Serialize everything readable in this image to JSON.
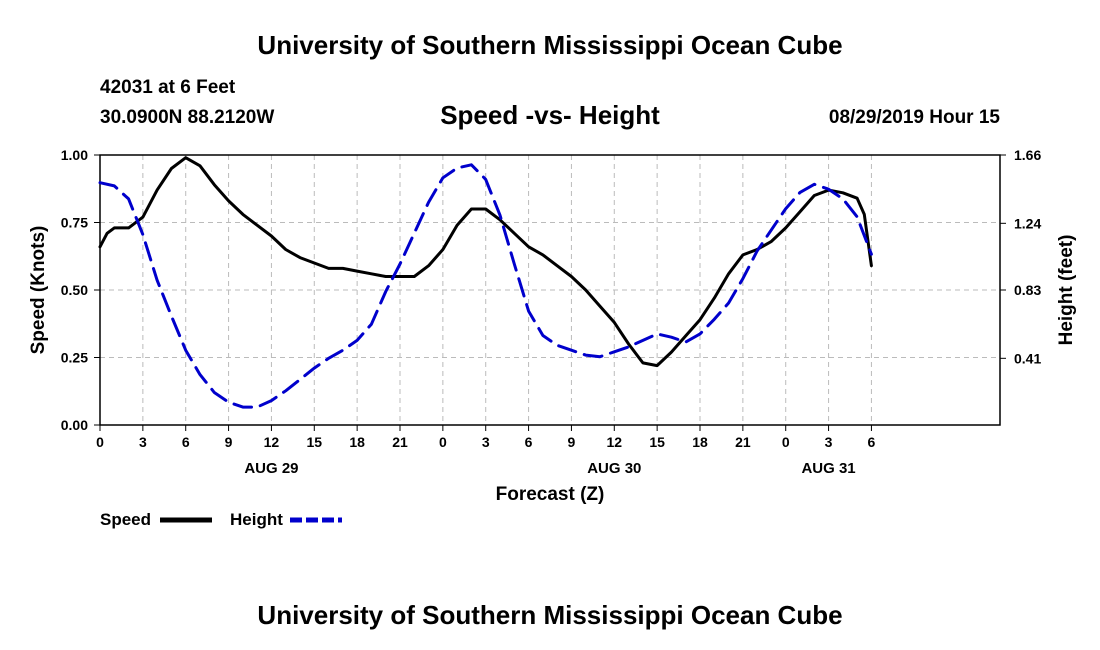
{
  "page": {
    "title_top": "University of Southern Mississippi Ocean Cube",
    "title_bottom": "University of Southern Mississippi Ocean Cube",
    "station": "42031 at 6 Feet",
    "coords": "30.0900N 88.2120W",
    "datetime": "08/29/2019 Hour 15"
  },
  "legend": {
    "speed_label": "Speed",
    "height_label": "Height"
  },
  "colors": {
    "speed": "#000000",
    "height": "#0000cc",
    "grid": "#bbbbbb"
  },
  "chart_data": {
    "type": "line",
    "title": "Speed -vs- Height",
    "xlabel": "Forecast (Z)",
    "ylabel": "Speed (Knots)",
    "y2label": "Height (feet)",
    "xlim": [
      0,
      63
    ],
    "ylim": [
      0,
      1.0
    ],
    "y2lim": [
      0,
      1.66
    ],
    "x_ticks": [
      {
        "x": 0,
        "label": "0"
      },
      {
        "x": 3,
        "label": "3"
      },
      {
        "x": 6,
        "label": "6"
      },
      {
        "x": 9,
        "label": "9"
      },
      {
        "x": 12,
        "label": "12"
      },
      {
        "x": 15,
        "label": "15"
      },
      {
        "x": 18,
        "label": "18"
      },
      {
        "x": 21,
        "label": "21"
      },
      {
        "x": 24,
        "label": "0"
      },
      {
        "x": 27,
        "label": "3"
      },
      {
        "x": 30,
        "label": "6"
      },
      {
        "x": 33,
        "label": "9"
      },
      {
        "x": 36,
        "label": "12"
      },
      {
        "x": 39,
        "label": "15"
      },
      {
        "x": 42,
        "label": "18"
      },
      {
        "x": 45,
        "label": "21"
      },
      {
        "x": 48,
        "label": "0"
      },
      {
        "x": 51,
        "label": "3"
      },
      {
        "x": 54,
        "label": "6"
      }
    ],
    "date_labels": [
      {
        "x": 12,
        "label": "AUG 29"
      },
      {
        "x": 36,
        "label": "AUG 30"
      },
      {
        "x": 51,
        "label": "AUG 31"
      }
    ],
    "y_ticks": [
      {
        "v": 0.0,
        "label": "0.00"
      },
      {
        "v": 0.25,
        "label": "0.25"
      },
      {
        "v": 0.5,
        "label": "0.50"
      },
      {
        "v": 0.75,
        "label": "0.75"
      },
      {
        "v": 1.0,
        "label": "1.00"
      }
    ],
    "y2_ticks": [
      {
        "v": 0.41,
        "label": "0.41"
      },
      {
        "v": 0.83,
        "label": "0.83"
      },
      {
        "v": 1.24,
        "label": "1.24"
      },
      {
        "v": 1.66,
        "label": "1.66"
      }
    ],
    "series": [
      {
        "name": "Speed",
        "axis": "left",
        "style": "solid",
        "x": [
          0,
          0.5,
          1,
          2,
          3,
          4,
          5,
          6,
          7,
          8,
          9,
          10,
          11,
          12,
          13,
          14,
          15,
          16,
          17,
          18,
          19,
          20,
          21,
          22,
          23,
          24,
          25,
          26,
          27,
          28,
          29,
          30,
          31,
          32,
          33,
          34,
          35,
          36,
          37,
          38,
          39,
          40,
          41,
          42,
          43,
          44,
          45,
          46,
          47,
          48,
          49,
          50,
          51,
          52,
          53,
          53.5,
          54
        ],
        "values": [
          0.66,
          0.71,
          0.73,
          0.73,
          0.77,
          0.87,
          0.95,
          0.99,
          0.96,
          0.89,
          0.83,
          0.78,
          0.74,
          0.7,
          0.65,
          0.62,
          0.6,
          0.58,
          0.58,
          0.57,
          0.56,
          0.55,
          0.55,
          0.55,
          0.59,
          0.65,
          0.74,
          0.8,
          0.8,
          0.76,
          0.71,
          0.66,
          0.63,
          0.59,
          0.55,
          0.5,
          0.44,
          0.38,
          0.3,
          0.23,
          0.22,
          0.27,
          0.33,
          0.39,
          0.47,
          0.56,
          0.63,
          0.65,
          0.68,
          0.73,
          0.79,
          0.85,
          0.87,
          0.86,
          0.84,
          0.78,
          0.59
        ]
      },
      {
        "name": "Height",
        "axis": "right",
        "style": "dashed",
        "x": [
          0,
          1,
          2,
          3,
          4,
          5,
          6,
          7,
          8,
          9,
          10,
          11,
          12,
          13,
          14,
          15,
          16,
          17,
          18,
          19,
          20,
          21,
          22,
          23,
          24,
          25,
          26,
          27,
          28,
          29,
          30,
          31,
          32,
          33,
          34,
          35,
          36,
          37,
          38,
          39,
          40,
          41,
          42,
          43,
          44,
          45,
          46,
          47,
          48,
          49,
          50,
          51,
          52,
          53,
          54
        ],
        "values": [
          1.49,
          1.47,
          1.39,
          1.17,
          0.89,
          0.67,
          0.46,
          0.31,
          0.2,
          0.14,
          0.11,
          0.11,
          0.15,
          0.21,
          0.28,
          0.35,
          0.41,
          0.46,
          0.52,
          0.62,
          0.82,
          0.99,
          1.18,
          1.37,
          1.52,
          1.58,
          1.6,
          1.51,
          1.29,
          0.99,
          0.7,
          0.55,
          0.49,
          0.46,
          0.43,
          0.42,
          0.45,
          0.48,
          0.52,
          0.56,
          0.54,
          0.51,
          0.56,
          0.65,
          0.75,
          0.9,
          1.07,
          1.2,
          1.33,
          1.43,
          1.48,
          1.45,
          1.39,
          1.28,
          1.05
        ]
      }
    ]
  }
}
